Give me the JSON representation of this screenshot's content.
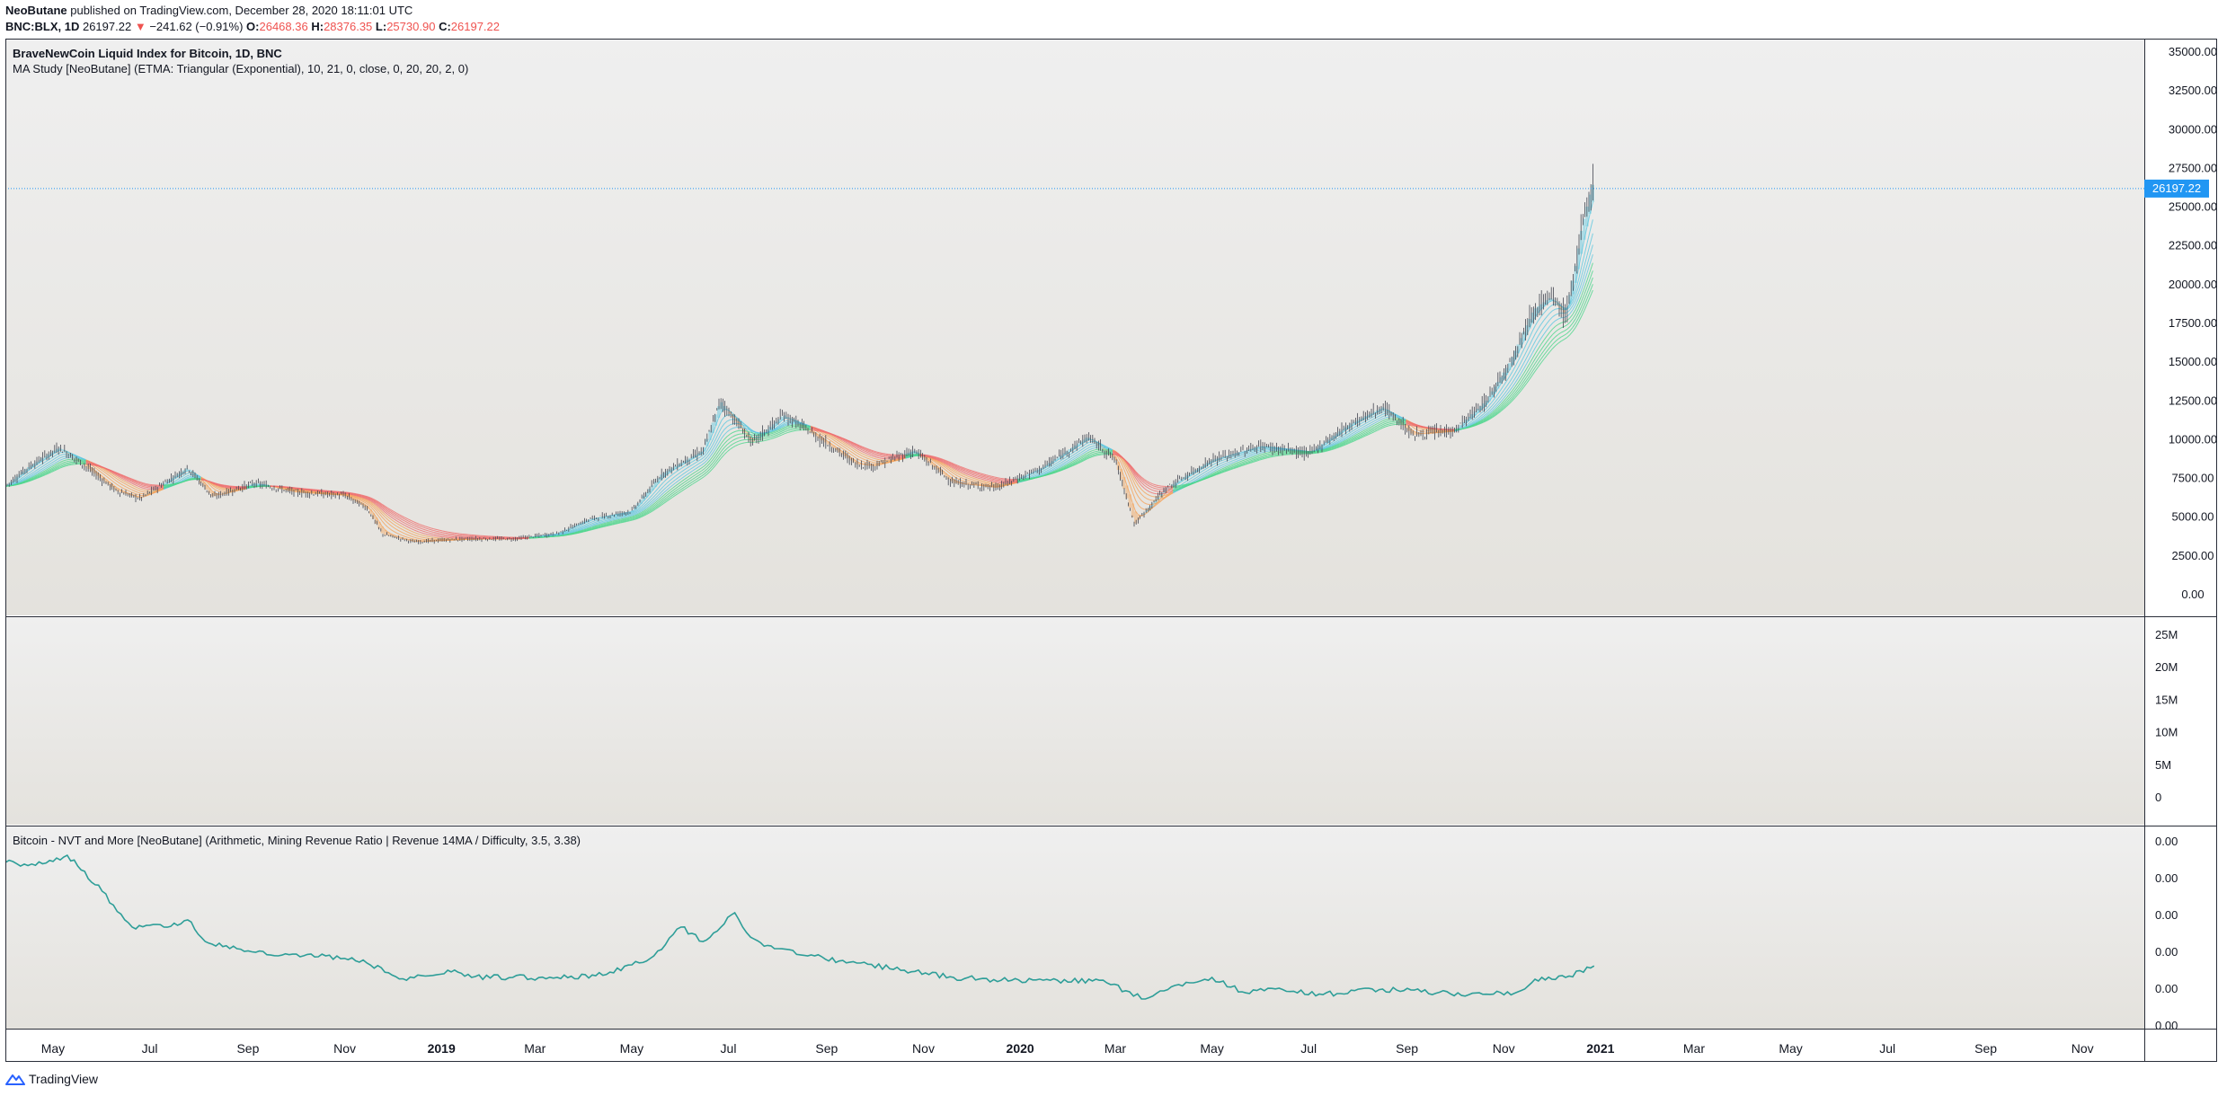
{
  "header": {
    "author": "NeoButane",
    "published_text": " published on TradingView.com, December 28, 2020 18:11:01 UTC",
    "symbol": "BNC:BLX, 1D",
    "price": "26197.22",
    "change_arrow": "▼",
    "change": "−241.62 (−0.91%)",
    "o_label": "O:",
    "o_value": "26468.36",
    "h_label": "H:",
    "h_value": "28376.35",
    "l_label": "L:",
    "l_value": "25730.90",
    "c_label": "C:",
    "c_value": "26197.22"
  },
  "pane1": {
    "title": "BraveNewCoin Liquid Index for Bitcoin, 1D, BNC",
    "study": "MA Study [NeoButane] (ETMA: Triangular (Exponential), 10, 21, 0, close, 0, 20, 20, 2, 0)",
    "last_price_label": "26197.22"
  },
  "pane3": {
    "title": "Bitcoin - NVT and More [NeoButane] (Arithmetic, Mining Revenue Ratio | Revenue 14MA / Difficulty, 3.5, 3.38)"
  },
  "footer": {
    "brand": "TradingView"
  },
  "colors": {
    "candle": "#434651",
    "last_price": "#2196f3",
    "ma_bull_fast": "#5ec8e0",
    "ma_bull_slow": "#4cd68c",
    "ma_bear_fast": "#f5a35b",
    "ma_bear_slow": "#ef6f6f",
    "indicator": "#2e9e98"
  },
  "chart_data": [
    {
      "type": "line",
      "title": "BraveNewCoin Liquid Index for Bitcoin, 1D, BNC",
      "series_kind": "candlestick price with MA ribbon",
      "x_tick_labels": [
        "May",
        "Jul",
        "Sep",
        "Nov",
        "2019",
        "Mar",
        "May",
        "Jul",
        "Sep",
        "Nov",
        "2020",
        "Mar",
        "May",
        "Jul",
        "Sep",
        "Nov",
        "2021",
        "Mar",
        "May",
        "Jul",
        "Sep",
        "Nov"
      ],
      "y_tick_labels": [
        "35000.00",
        "32500.00",
        "30000.00",
        "27500.00",
        "25000.00",
        "22500.00",
        "20000.00",
        "17500.00",
        "15000.00",
        "12500.00",
        "10000.00",
        "7500.00",
        "5000.00",
        "2500.00",
        "0.00"
      ],
      "ylim": [
        0,
        35000
      ],
      "last_price": 26197.22,
      "x": [
        "2018-04-01",
        "2018-04-15",
        "2018-05-05",
        "2018-05-20",
        "2018-06-10",
        "2018-06-25",
        "2018-07-25",
        "2018-08-10",
        "2018-09-05",
        "2018-10-01",
        "2018-11-01",
        "2018-11-15",
        "2018-11-25",
        "2018-12-15",
        "2019-01-15",
        "2019-02-15",
        "2019-03-15",
        "2019-04-05",
        "2019-05-01",
        "2019-05-20",
        "2019-06-15",
        "2019-06-26",
        "2019-07-16",
        "2019-08-05",
        "2019-08-20",
        "2019-09-20",
        "2019-10-01",
        "2019-10-26",
        "2019-11-20",
        "2019-12-17",
        "2020-01-15",
        "2020-02-13",
        "2020-03-01",
        "2020-03-12",
        "2020-03-13",
        "2020-04-01",
        "2020-05-01",
        "2020-06-01",
        "2020-07-01",
        "2020-07-27",
        "2020-08-17",
        "2020-09-05",
        "2020-10-01",
        "2020-10-21",
        "2020-11-05",
        "2020-11-20",
        "2020-12-01",
        "2020-12-10",
        "2020-12-16",
        "2020-12-20",
        "2020-12-27",
        "2020-12-28"
      ],
      "series": [
        {
          "values": [
            7000,
            8200,
            9500,
            8400,
            6700,
            6200,
            8200,
            6300,
            7200,
            6600,
            6400,
            5600,
            3900,
            3400,
            3600,
            3600,
            3950,
            4900,
            5400,
            7800,
            9300,
            12500,
            9800,
            11600,
            10600,
            8400,
            8300,
            9300,
            7200,
            6900,
            8200,
            10200,
            8700,
            5000,
            4500,
            6800,
            8700,
            9600,
            9100,
            11000,
            12100,
            10300,
            10600,
            12500,
            15000,
            18400,
            19200,
            18000,
            21000,
            23500,
            26500,
            26197
          ]
        }
      ]
    },
    {
      "type": "line",
      "title": "",
      "y_tick_labels": [
        "25M",
        "20M",
        "15M",
        "10M",
        "5M",
        "0"
      ],
      "ylim": [
        0,
        25
      ],
      "series": []
    },
    {
      "type": "line",
      "title": "Bitcoin - NVT and More [NeoButane] (Arithmetic, Mining Revenue Ratio | Revenue 14MA / Difficulty, 3.5, 3.38)",
      "y_tick_labels": [
        "0.00",
        "0.00",
        "0.00",
        "0.00",
        "0.00",
        "0.00"
      ],
      "x": [
        "2018-04-01",
        "2018-04-20",
        "2018-05-10",
        "2018-06-01",
        "2018-06-20",
        "2018-07-10",
        "2018-07-25",
        "2018-08-05",
        "2018-08-25",
        "2018-09-20",
        "2018-10-20",
        "2018-11-15",
        "2018-12-10",
        "2019-01-05",
        "2019-01-20",
        "2019-02-15",
        "2019-03-15",
        "2019-04-15",
        "2019-05-15",
        "2019-06-01",
        "2019-06-15",
        "2019-07-05",
        "2019-07-15",
        "2019-07-30",
        "2019-08-20",
        "2019-09-20",
        "2019-10-20",
        "2019-11-20",
        "2019-12-20",
        "2020-01-20",
        "2020-02-20",
        "2020-03-10",
        "2020-03-20",
        "2020-04-10",
        "2020-05-01",
        "2020-05-20",
        "2020-06-10",
        "2020-07-10",
        "2020-08-10",
        "2020-09-10",
        "2020-10-10",
        "2020-11-10",
        "2020-11-25",
        "2020-12-10",
        "2020-12-28"
      ],
      "series": [
        {
          "values": [
            1.0,
            0.98,
            1.05,
            0.8,
            0.55,
            0.55,
            0.6,
            0.45,
            0.4,
            0.35,
            0.35,
            0.3,
            0.18,
            0.25,
            0.2,
            0.2,
            0.2,
            0.22,
            0.35,
            0.55,
            0.45,
            0.65,
            0.48,
            0.4,
            0.35,
            0.3,
            0.25,
            0.2,
            0.18,
            0.18,
            0.18,
            0.1,
            0.05,
            0.15,
            0.2,
            0.1,
            0.12,
            0.08,
            0.12,
            0.1,
            0.08,
            0.1,
            0.2,
            0.2,
            0.28
          ]
        }
      ]
    }
  ]
}
